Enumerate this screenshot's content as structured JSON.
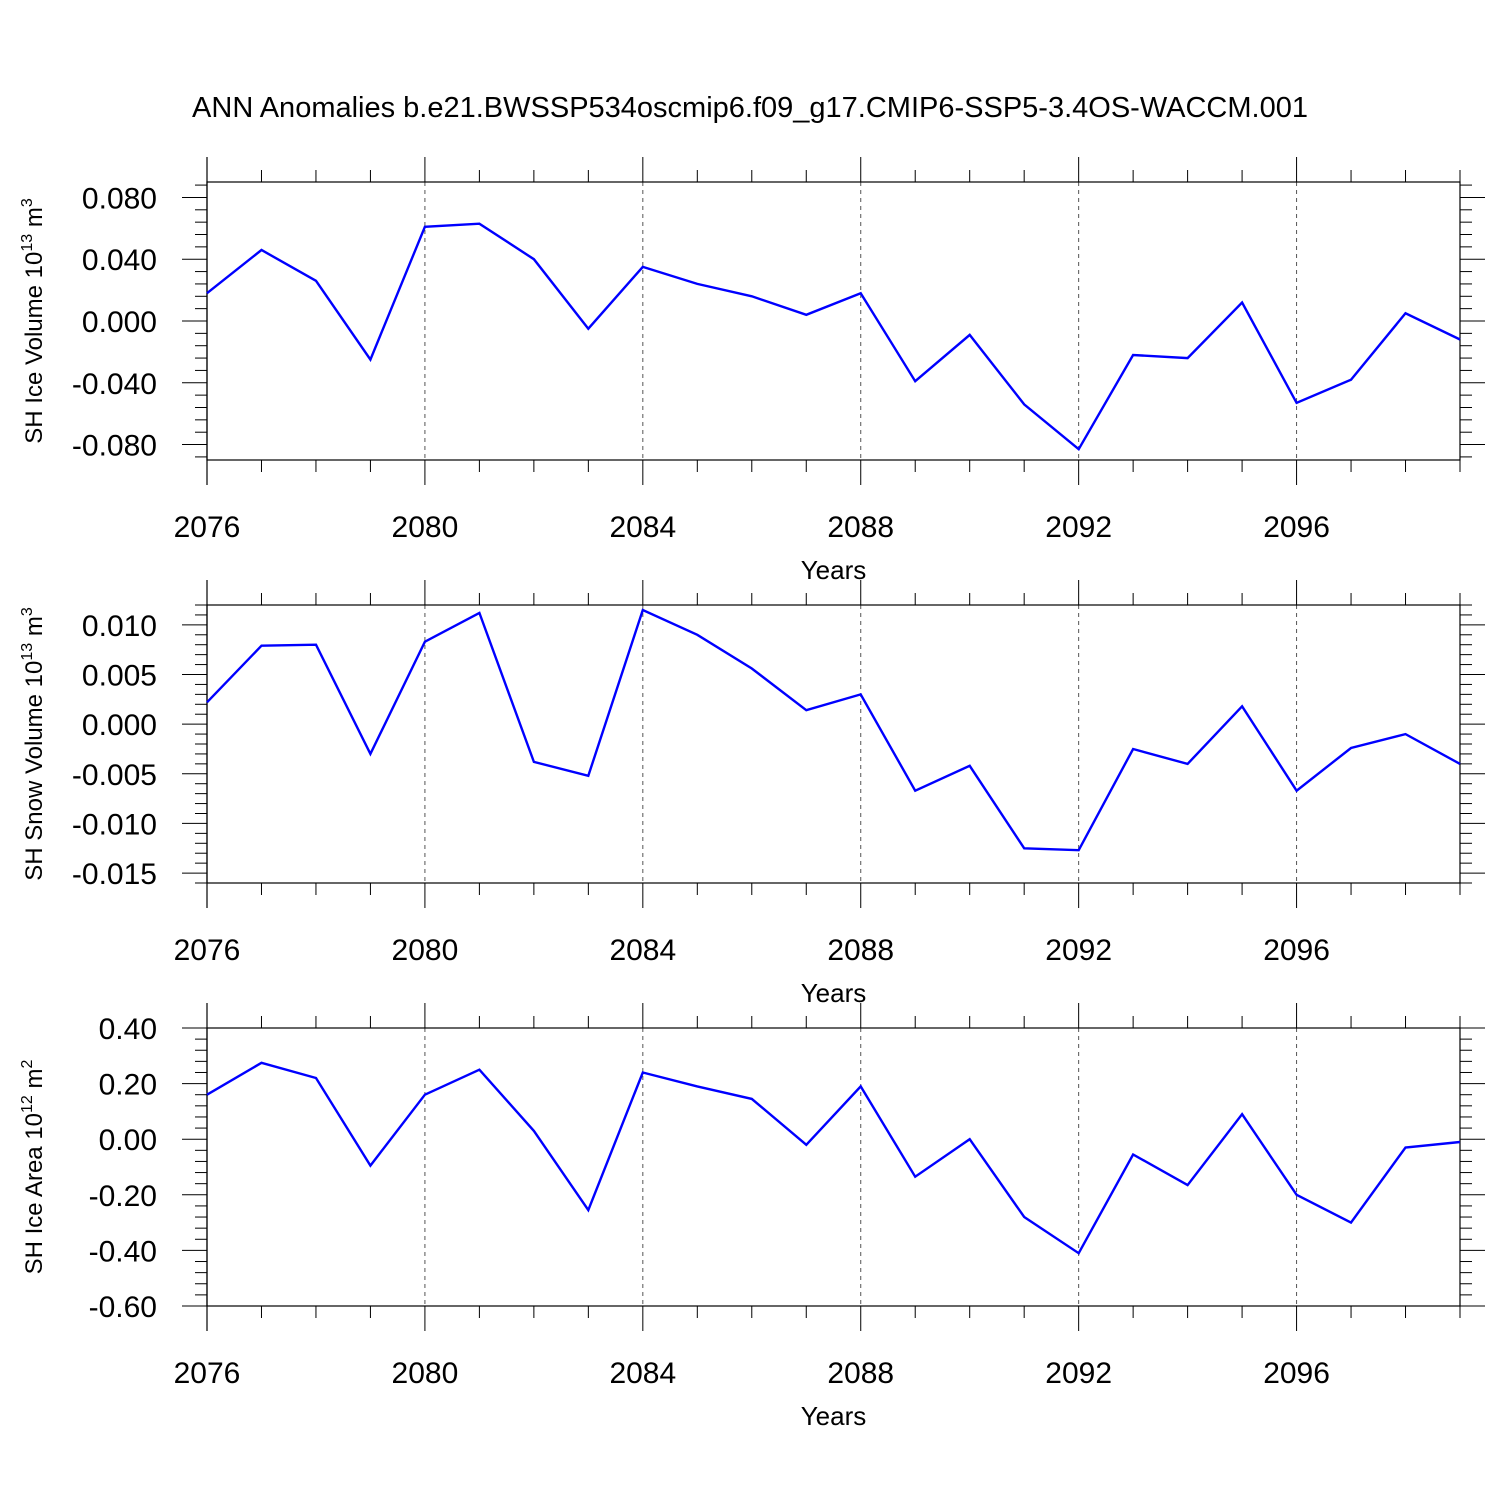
{
  "title": "ANN Anomalies b.e21.BWSSP534oscmip6.f09_g17.CMIP6-SSP5-3.4OS-WACCM.001",
  "line_color": "#0000ff",
  "chart_data": [
    {
      "type": "line",
      "xlabel": "Years",
      "ylabel": "SH Ice Volume 10",
      "ylabel_sup": "13",
      "ylabel_unit": " m",
      "ylabel_unit_sup": "3",
      "xlim": [
        2076,
        2099
      ],
      "ylim": [
        -0.09,
        0.09
      ],
      "x_ticks": [
        2076,
        2080,
        2084,
        2088,
        2092,
        2096
      ],
      "y_ticks": [
        0.08,
        0.04,
        0.0,
        -0.04,
        -0.08
      ],
      "y_tick_labels": [
        "0.080",
        "0.040",
        "0.000",
        "-0.040",
        "-0.080"
      ],
      "x": [
        2076,
        2077,
        2078,
        2079,
        2080,
        2081,
        2082,
        2083,
        2084,
        2085,
        2086,
        2087,
        2088,
        2089,
        2090,
        2091,
        2092,
        2093,
        2094,
        2095,
        2096,
        2097,
        2098,
        2099
      ],
      "series": [
        {
          "values": [
            0.018,
            0.046,
            0.026,
            -0.025,
            0.061,
            0.063,
            0.04,
            -0.005,
            0.035,
            0.024,
            0.016,
            0.004,
            0.018,
            -0.039,
            -0.009,
            -0.054,
            -0.083,
            -0.022,
            -0.024,
            0.012,
            -0.053,
            -0.038,
            0.005,
            -0.012
          ]
        }
      ],
      "grid": "dashed vertical lines at major x ticks"
    },
    {
      "type": "line",
      "xlabel": "Years",
      "ylabel": "SH Snow Volume 10",
      "ylabel_sup": "13",
      "ylabel_unit": " m",
      "ylabel_unit_sup": "3",
      "xlim": [
        2076,
        2099
      ],
      "ylim": [
        -0.016,
        0.012
      ],
      "x_ticks": [
        2076,
        2080,
        2084,
        2088,
        2092,
        2096
      ],
      "y_ticks": [
        0.01,
        0.005,
        0.0,
        -0.005,
        -0.01,
        -0.015
      ],
      "y_tick_labels": [
        "0.010",
        "0.005",
        "0.000",
        "-0.005",
        "-0.010",
        "-0.015"
      ],
      "x": [
        2076,
        2077,
        2078,
        2079,
        2080,
        2081,
        2082,
        2083,
        2084,
        2085,
        2086,
        2087,
        2088,
        2089,
        2090,
        2091,
        2092,
        2093,
        2094,
        2095,
        2096,
        2097,
        2098,
        2099
      ],
      "series": [
        {
          "values": [
            0.0022,
            0.0079,
            0.008,
            -0.003,
            0.0083,
            0.0112,
            -0.0038,
            -0.0052,
            0.0115,
            0.009,
            0.0056,
            0.0014,
            0.003,
            -0.0067,
            -0.0042,
            -0.0125,
            -0.0127,
            -0.0025,
            -0.004,
            0.0018,
            -0.0067,
            -0.0024,
            -0.001,
            -0.004
          ]
        }
      ],
      "grid": "dashed vertical lines at major x ticks"
    },
    {
      "type": "line",
      "xlabel": "Years",
      "ylabel": "SH Ice Area 10",
      "ylabel_sup": "12",
      "ylabel_unit": " m",
      "ylabel_unit_sup": "2",
      "xlim": [
        2076,
        2099
      ],
      "ylim": [
        -0.6,
        0.4
      ],
      "x_ticks": [
        2076,
        2080,
        2084,
        2088,
        2092,
        2096
      ],
      "y_ticks": [
        0.4,
        0.2,
        0.0,
        -0.2,
        -0.4,
        -0.6
      ],
      "y_tick_labels": [
        "0.40",
        "0.20",
        "0.00",
        "-0.20",
        "-0.40",
        "-0.60"
      ],
      "x": [
        2076,
        2077,
        2078,
        2079,
        2080,
        2081,
        2082,
        2083,
        2084,
        2085,
        2086,
        2087,
        2088,
        2089,
        2090,
        2091,
        2092,
        2093,
        2094,
        2095,
        2096,
        2097,
        2098,
        2099
      ],
      "series": [
        {
          "values": [
            0.16,
            0.275,
            0.22,
            -0.095,
            0.16,
            0.25,
            0.03,
            -0.255,
            0.24,
            0.19,
            0.145,
            -0.02,
            0.19,
            -0.135,
            0.0,
            -0.28,
            -0.41,
            -0.055,
            -0.165,
            0.09,
            -0.2,
            -0.3,
            -0.03,
            -0.01
          ]
        }
      ],
      "grid": "dashed vertical lines at major x ticks"
    }
  ]
}
